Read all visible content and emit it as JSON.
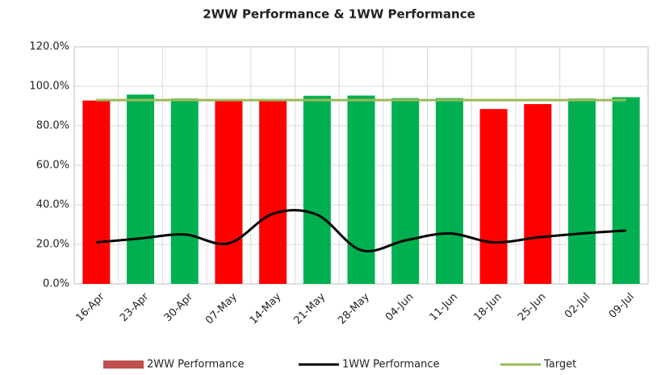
{
  "chart_data": {
    "type": "bar-line",
    "title": "2WW Performance & 1WW Performance",
    "categories": [
      "16-Apr",
      "23-Apr",
      "30-Apr",
      "07-May",
      "14-May",
      "21-May",
      "28-May",
      "04-Jun",
      "11-Jun",
      "18-Jun",
      "25-Jun",
      "02-Jul",
      "09-Jul"
    ],
    "series": [
      {
        "name": "2WW Performance",
        "type": "bar",
        "color": "#c0504d",
        "colors": [
          "#ff0000",
          "#00b050",
          "#00b050",
          "#ff0000",
          "#ff0000",
          "#00b050",
          "#00b050",
          "#00b050",
          "#00b050",
          "#ff0000",
          "#ff0000",
          "#00b050",
          "#00b050"
        ],
        "values": [
          92.8,
          95.8,
          93.8,
          92.8,
          92.8,
          95.2,
          95.3,
          94.0,
          94.0,
          88.5,
          91.0,
          93.8,
          94.5
        ]
      },
      {
        "name": "1WW Performance",
        "type": "line",
        "color": "#000000",
        "values": [
          21,
          23,
          25,
          20.5,
          35.5,
          35,
          17,
          22,
          25.5,
          21,
          23.5,
          25.5,
          27
        ]
      },
      {
        "name": "Target",
        "type": "line",
        "color": "#9bbb59",
        "values": [
          93,
          93,
          93,
          93,
          93,
          93,
          93,
          93,
          93,
          93,
          93,
          93,
          93
        ]
      }
    ],
    "ylim": [
      0,
      120
    ],
    "yticks": [
      {
        "value": 0,
        "label": "0.0%"
      },
      {
        "value": 20,
        "label": "20.0%"
      },
      {
        "value": 40,
        "label": "40.0%"
      },
      {
        "value": 60,
        "label": "60.0%"
      },
      {
        "value": 80,
        "label": "80.0%"
      },
      {
        "value": 100,
        "label": "100.0%"
      },
      {
        "value": 120,
        "label": "120.0%"
      }
    ],
    "grid": true,
    "legend": "bottom"
  }
}
